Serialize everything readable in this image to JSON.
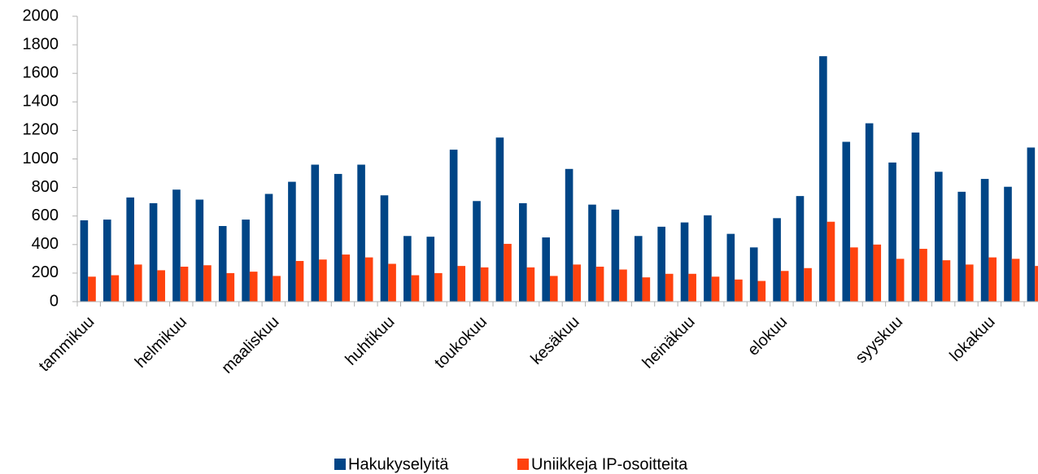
{
  "chart_data": {
    "type": "bar",
    "categories": [
      "tammikuu",
      null,
      null,
      null,
      "helmikuu",
      null,
      null,
      null,
      "maaliskuu",
      null,
      null,
      null,
      null,
      "huhtikuu",
      null,
      null,
      null,
      "toukokuu",
      null,
      null,
      null,
      "kesäkuu",
      null,
      null,
      null,
      null,
      "heinäkuu",
      null,
      null,
      null,
      "elokuu",
      null,
      null,
      null,
      null,
      "syyskuu",
      null,
      null,
      null,
      "lokakuu",
      null,
      null
    ],
    "series": [
      {
        "name": "Hakukyselyitä",
        "color": "#004586",
        "values": [
          570,
          575,
          730,
          690,
          785,
          715,
          530,
          575,
          755,
          840,
          960,
          895,
          960,
          745,
          460,
          455,
          1065,
          705,
          1150,
          690,
          450,
          930,
          680,
          645,
          460,
          525,
          555,
          605,
          475,
          380,
          585,
          740,
          1720,
          1120,
          1250,
          975,
          1185,
          910,
          770,
          860,
          805,
          1080
        ]
      },
      {
        "name": "Uniikkeja IP-osoitteita",
        "color": "#ff420e",
        "values": [
          175,
          185,
          260,
          220,
          245,
          255,
          200,
          210,
          180,
          285,
          295,
          330,
          310,
          265,
          185,
          200,
          250,
          240,
          405,
          240,
          180,
          260,
          245,
          225,
          170,
          195,
          195,
          175,
          155,
          145,
          215,
          235,
          560,
          380,
          400,
          300,
          370,
          290,
          260,
          310,
          300,
          250
        ]
      }
    ],
    "ylim": [
      0,
      2000
    ],
    "yticks": [
      0,
      200,
      400,
      600,
      800,
      1000,
      1200,
      1400,
      1600,
      1800,
      2000
    ],
    "grid": false,
    "legend": "bottom"
  }
}
